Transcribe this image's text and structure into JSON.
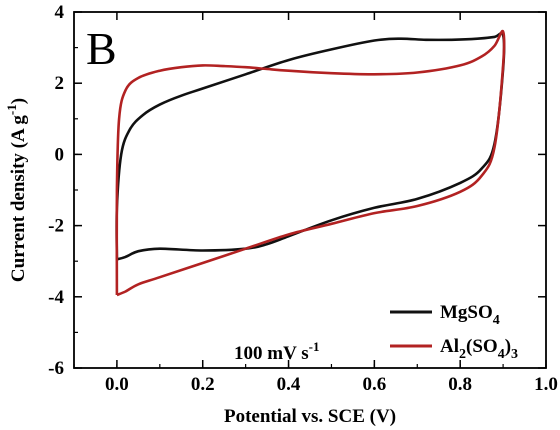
{
  "chart_data": {
    "type": "line",
    "panel_label": "B",
    "xlabel": "Potential vs. SCE (V)",
    "ylabel": {
      "base": "Current density (A g",
      "sup": "-1",
      "close": ")"
    },
    "xlim": [
      -0.1,
      1.0
    ],
    "ylim": [
      -6,
      4
    ],
    "x_ticks": [
      "0.0",
      "0.2",
      "0.4",
      "0.6",
      "0.8",
      "1.0"
    ],
    "x_tick_values": [
      0.0,
      0.2,
      0.4,
      0.6,
      0.8,
      1.0
    ],
    "y_ticks": [
      "-6",
      "-4",
      "-2",
      "0",
      "2",
      "4"
    ],
    "y_tick_values": [
      -6,
      -4,
      -2,
      0,
      2,
      4
    ],
    "annotation": {
      "base": "100 mV s",
      "sup": "-1"
    },
    "legend_position": "bottom-right",
    "series": [
      {
        "name": "MgSO4",
        "name_parts": [
          [
            "MgSO",
            "n"
          ],
          [
            "4",
            "sub"
          ]
        ],
        "color": "#111111",
        "x": [
          0.0,
          0.0,
          0.01,
          0.03,
          0.06,
          0.1,
          0.15,
          0.2,
          0.3,
          0.4,
          0.5,
          0.6,
          0.66,
          0.72,
          0.78,
          0.84,
          0.88,
          0.9,
          0.9,
          0.88,
          0.85,
          0.8,
          0.7,
          0.6,
          0.5,
          0.4,
          0.35,
          0.3,
          0.2,
          0.1,
          0.05,
          0.02,
          0.0
        ],
        "y": [
          -2.95,
          -1.5,
          0.0,
          0.7,
          1.1,
          1.4,
          1.65,
          1.85,
          2.25,
          2.65,
          2.95,
          3.2,
          3.25,
          3.22,
          3.22,
          3.25,
          3.3,
          3.35,
          2.4,
          0.3,
          -0.4,
          -0.8,
          -1.25,
          -1.5,
          -1.85,
          -2.3,
          -2.52,
          -2.65,
          -2.7,
          -2.65,
          -2.72,
          -2.88,
          -2.95
        ]
      },
      {
        "name": "Al2(SO4)3",
        "name_parts": [
          [
            "Al",
            "n"
          ],
          [
            "2",
            "sub"
          ],
          [
            "(SO",
            "n"
          ],
          [
            "4",
            "sub"
          ],
          [
            ")",
            "n"
          ],
          [
            "3",
            "sub"
          ]
        ],
        "color": "#b22222",
        "x": [
          0.0,
          0.0,
          0.005,
          0.02,
          0.05,
          0.1,
          0.15,
          0.2,
          0.25,
          0.3,
          0.35,
          0.4,
          0.5,
          0.6,
          0.7,
          0.8,
          0.85,
          0.88,
          0.9,
          0.9,
          0.88,
          0.85,
          0.8,
          0.7,
          0.6,
          0.5,
          0.4,
          0.3,
          0.2,
          0.1,
          0.05,
          0.02,
          0.0
        ],
        "y": [
          -3.95,
          -1.0,
          1.0,
          1.8,
          2.15,
          2.35,
          2.45,
          2.5,
          2.48,
          2.45,
          2.4,
          2.35,
          2.28,
          2.25,
          2.3,
          2.5,
          2.75,
          3.05,
          3.45,
          2.5,
          0.2,
          -0.6,
          -1.05,
          -1.45,
          -1.65,
          -1.95,
          -2.25,
          -2.65,
          -3.05,
          -3.45,
          -3.65,
          -3.85,
          -3.95
        ]
      }
    ]
  }
}
